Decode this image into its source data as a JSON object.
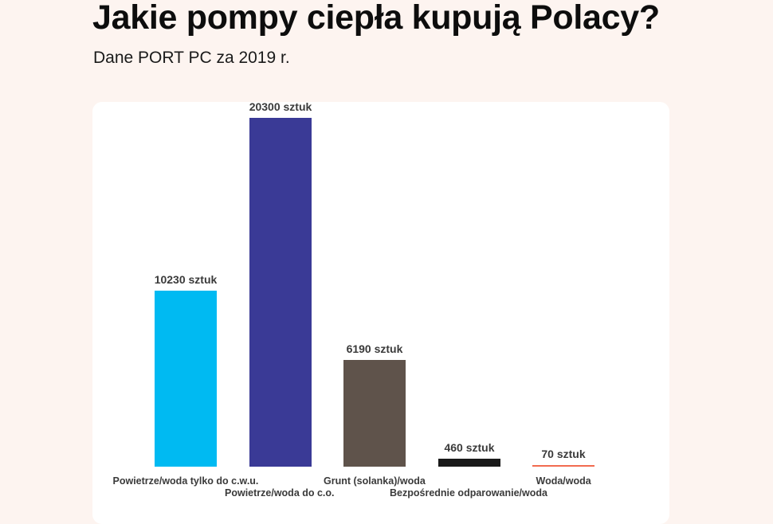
{
  "header": {
    "title": "Jakie pompy ciepła kupują Polacy?",
    "subtitle": "Dane PORT PC za 2019 r."
  },
  "chart_data": {
    "type": "bar",
    "title": "Jakie pompy ciepła kupują Polacy?",
    "subtitle": "Dane PORT PC za 2019 r.",
    "xlabel": "",
    "ylabel": "",
    "unit": "sztuk",
    "grid": false,
    "legend": null,
    "ylim": [
      0,
      20300
    ],
    "categories": [
      "Powietrze/woda tylko do c.w.u.",
      "Powietrze/woda do c.o.",
      "Grunt (solanka)/woda",
      "Bezpośrednie odparowanie/woda",
      "Woda/woda"
    ],
    "values": [
      10230,
      20300,
      6190,
      460,
      70
    ],
    "data_labels": [
      "10230 sztuk",
      "20300 sztuk",
      "6190 sztuk",
      "460 sztuk",
      "70 sztuk"
    ],
    "colors": [
      "#00BAF2",
      "#3A3A96",
      "#5F534B",
      "#1A1A1A",
      "#F26B4F"
    ]
  },
  "colors": {
    "background": "#FDF4F0",
    "card": "#FFFFFF",
    "text": "#111111",
    "label_text": "#3A3A3A"
  }
}
